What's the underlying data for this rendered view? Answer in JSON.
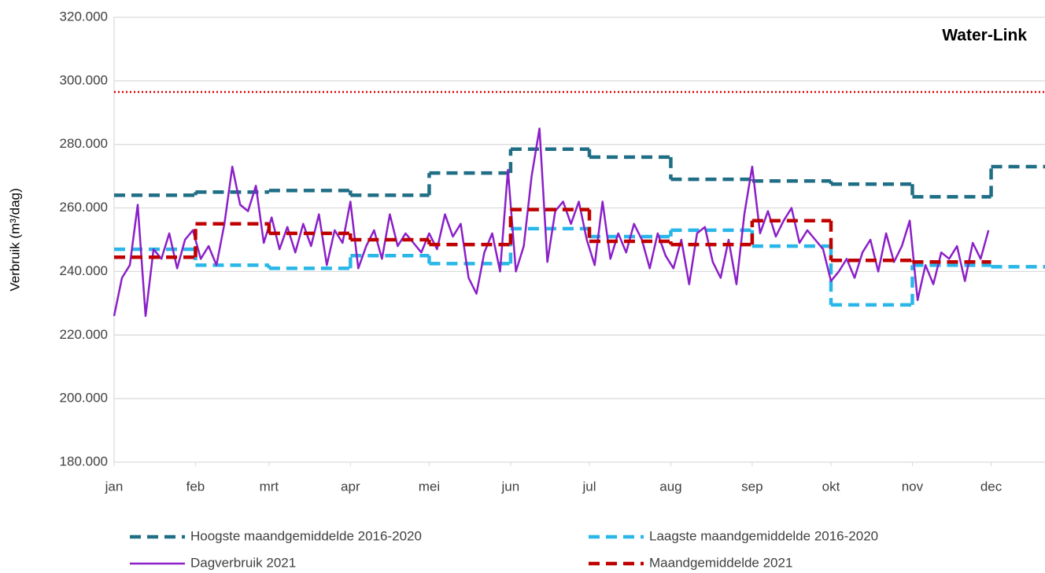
{
  "chart_data": {
    "type": "line",
    "annotation": "Water-Link",
    "y_label": "Verbruik (m³/dag)",
    "xlim": [
      0,
      365
    ],
    "xticks": [
      {
        "value": 0,
        "label": "jan"
      },
      {
        "value": 31,
        "label": "feb"
      },
      {
        "value": 59,
        "label": "mrt"
      },
      {
        "value": 90,
        "label": "apr"
      },
      {
        "value": 120,
        "label": "mei"
      },
      {
        "value": 151,
        "label": "jun"
      },
      {
        "value": 181,
        "label": "jul"
      },
      {
        "value": 212,
        "label": "aug"
      },
      {
        "value": 243,
        "label": "sep"
      },
      {
        "value": 273,
        "label": "okt"
      },
      {
        "value": 304,
        "label": "nov"
      },
      {
        "value": 334,
        "label": "dec"
      }
    ],
    "ylim": [
      180,
      320
    ],
    "yticks": [
      {
        "value": 180,
        "label": "180.000"
      },
      {
        "value": 200,
        "label": "200.000"
      },
      {
        "value": 220,
        "label": "220.000"
      },
      {
        "value": 240,
        "label": "240.000"
      },
      {
        "value": 260,
        "label": "260.000"
      },
      {
        "value": 280,
        "label": "280.000"
      },
      {
        "value": 300,
        "label": "300.000"
      },
      {
        "value": 320,
        "label": "320.000"
      }
    ],
    "grid": true,
    "reference_line": {
      "value": 296.5,
      "color": "#e00000",
      "style": "dotted"
    },
    "series": [
      {
        "name": "Hoogste maandgemiddelde 2016-2020",
        "color": "#1f6e85",
        "style": "step-dashed",
        "x": [
          0,
          31,
          59,
          90,
          120,
          151,
          181,
          212,
          243,
          273,
          304,
          334
        ],
        "values": [
          264,
          265,
          265.5,
          264,
          271,
          278.5,
          276,
          269,
          268.5,
          267.5,
          263.5,
          273
        ]
      },
      {
        "name": "Laagste maandgemiddelde 2016-2020",
        "color": "#29b6e8",
        "style": "step-dashed",
        "x": [
          0,
          31,
          59,
          90,
          120,
          151,
          181,
          212,
          243,
          273,
          304,
          334
        ],
        "values": [
          247,
          242,
          241,
          245,
          242.5,
          253.5,
          251,
          253,
          248,
          229.5,
          242,
          241.5
        ]
      },
      {
        "name": "Dagverbruik 2021",
        "color": "#8b1fc8",
        "style": "solid",
        "x": [
          0,
          3,
          6,
          9,
          12,
          15,
          18,
          21,
          24,
          27,
          30,
          33,
          36,
          39,
          42,
          45,
          48,
          51,
          54,
          57,
          60,
          63,
          66,
          69,
          72,
          75,
          78,
          81,
          84,
          87,
          90,
          93,
          96,
          99,
          102,
          105,
          108,
          111,
          114,
          117,
          120,
          123,
          126,
          129,
          132,
          135,
          138,
          141,
          144,
          147,
          150,
          153,
          156,
          159,
          162,
          165,
          168,
          171,
          174,
          177,
          180,
          183,
          186,
          189,
          192,
          195,
          198,
          201,
          204,
          207,
          210,
          213,
          216,
          219,
          222,
          225,
          228,
          231,
          234,
          237,
          240,
          243,
          246,
          249,
          252,
          255,
          258,
          261,
          264,
          267,
          270,
          273,
          276,
          279,
          282,
          285,
          288,
          291,
          294,
          297,
          300,
          303,
          306,
          309,
          312,
          315,
          318,
          321,
          324,
          327,
          330,
          333
        ],
        "values": [
          226,
          238,
          242,
          261,
          226,
          247,
          244,
          252,
          241,
          250,
          253,
          244,
          248,
          242,
          255,
          273,
          261,
          259,
          267,
          249,
          257,
          247,
          254,
          246,
          255,
          248,
          258,
          242,
          253,
          249,
          262,
          241,
          248,
          253,
          244,
          258,
          248,
          252,
          249,
          246,
          252,
          247,
          258,
          251,
          255,
          238,
          233,
          246,
          252,
          240,
          272,
          240,
          248,
          270,
          285,
          243,
          259,
          262,
          255,
          262,
          250,
          242,
          262,
          244,
          252,
          246,
          255,
          250,
          241,
          252,
          245,
          241,
          250,
          236,
          252,
          254,
          243,
          238,
          250,
          236,
          258,
          273,
          252,
          259,
          251,
          256,
          260,
          249,
          253,
          250,
          247,
          237,
          240,
          244,
          238,
          246,
          250,
          240,
          252,
          243,
          248,
          256,
          231,
          242,
          236,
          246,
          244,
          248,
          237,
          249,
          244,
          253
        ]
      },
      {
        "name": "Maandgemiddelde 2021",
        "color": "#c00000",
        "style": "step-dashed",
        "x": [
          0,
          31,
          59,
          90,
          120,
          151,
          181,
          212,
          243,
          273,
          304,
          334
        ],
        "values": [
          244.5,
          255,
          252,
          250,
          248.5,
          259.5,
          249.5,
          248.5,
          256,
          243.5,
          243,
          null
        ]
      }
    ]
  }
}
